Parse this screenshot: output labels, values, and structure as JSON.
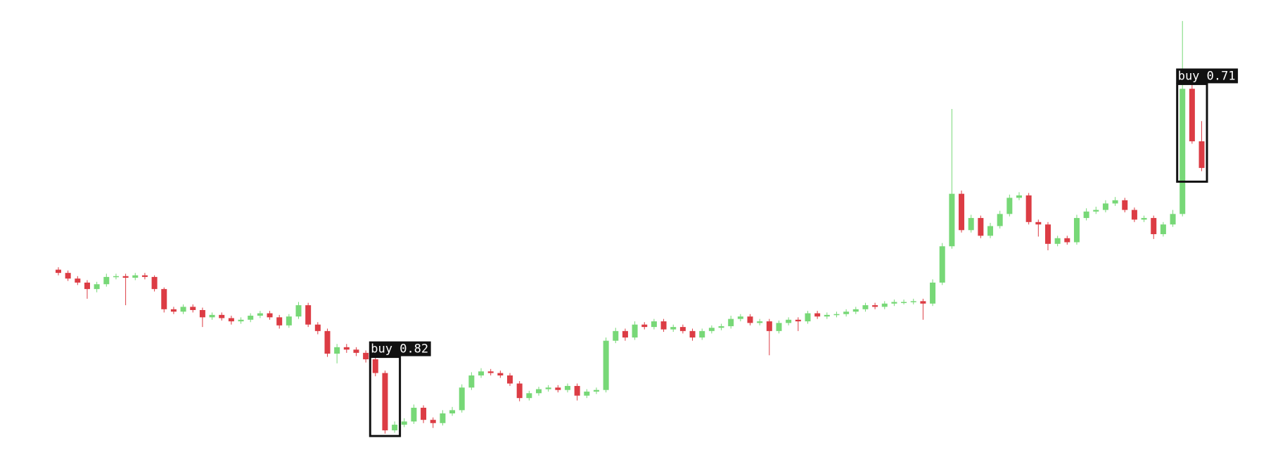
{
  "chart_data": {
    "type": "candlestick",
    "open": [
      232,
      228,
      221,
      216,
      208,
      214,
      223,
      224,
      222,
      225,
      223,
      208,
      183,
      180,
      186,
      182,
      173,
      176,
      172,
      168,
      170,
      175,
      178,
      173,
      163,
      174,
      188,
      164,
      156,
      128,
      136,
      133,
      129,
      121,
      104,
      33,
      40,
      44,
      61,
      46,
      42,
      54,
      58,
      86,
      101,
      106,
      104,
      101,
      91,
      73,
      79,
      84,
      86,
      83,
      88,
      76,
      81,
      83,
      144,
      156,
      148,
      164,
      161,
      168,
      158,
      161,
      156,
      148,
      156,
      160,
      162,
      171,
      174,
      166,
      168,
      156,
      166,
      170,
      168,
      178,
      174,
      176,
      177,
      180,
      183,
      188,
      186,
      190,
      192,
      192,
      193,
      190,
      216,
      261,
      326,
      281,
      296,
      274,
      286,
      301,
      321,
      324,
      291,
      288,
      264,
      271,
      266,
      296,
      304,
      306,
      314,
      318,
      306,
      294,
      296,
      276,
      288,
      301,
      456,
      391
    ],
    "high": [
      235,
      231,
      224,
      219,
      217,
      227,
      227,
      227,
      228,
      228,
      225,
      210,
      186,
      189,
      189,
      185,
      179,
      179,
      175,
      173,
      178,
      181,
      181,
      176,
      177,
      192,
      191,
      167,
      159,
      140,
      140,
      136,
      132,
      124,
      107,
      44,
      48,
      65,
      64,
      49,
      58,
      62,
      90,
      105,
      110,
      109,
      107,
      104,
      94,
      82,
      87,
      89,
      89,
      91,
      91,
      84,
      86,
      148,
      160,
      159,
      168,
      167,
      171,
      171,
      164,
      164,
      159,
      159,
      163,
      165,
      175,
      177,
      177,
      171,
      171,
      169,
      173,
      173,
      181,
      181,
      179,
      180,
      183,
      186,
      191,
      191,
      193,
      195,
      195,
      196,
      196,
      220,
      265,
      431,
      330,
      300,
      299,
      290,
      305,
      325,
      328,
      327,
      294,
      291,
      274,
      274,
      300,
      308,
      310,
      318,
      322,
      321,
      309,
      299,
      299,
      291,
      306,
      540,
      470,
      416
    ],
    "low": [
      225,
      218,
      213,
      196,
      204,
      211,
      220,
      188,
      219,
      220,
      205,
      179,
      177,
      177,
      179,
      161,
      170,
      169,
      164,
      165,
      167,
      172,
      170,
      159,
      160,
      171,
      161,
      152,
      124,
      116,
      129,
      125,
      117,
      100,
      29,
      30,
      37,
      41,
      42,
      36,
      39,
      51,
      55,
      83,
      98,
      101,
      98,
      88,
      69,
      70,
      76,
      81,
      80,
      80,
      70,
      73,
      78,
      80,
      141,
      144,
      145,
      158,
      158,
      155,
      155,
      153,
      144,
      145,
      153,
      157,
      159,
      168,
      163,
      163,
      126,
      153,
      163,
      156,
      165,
      171,
      171,
      173,
      174,
      177,
      180,
      183,
      183,
      187,
      189,
      189,
      170,
      187,
      213,
      258,
      278,
      278,
      271,
      271,
      283,
      298,
      318,
      288,
      273,
      256,
      261,
      263,
      263,
      293,
      301,
      303,
      311,
      303,
      291,
      291,
      270,
      273,
      285,
      298,
      388,
      354
    ],
    "close": [
      228,
      221,
      216,
      208,
      214,
      223,
      224,
      222,
      225,
      223,
      208,
      183,
      180,
      186,
      182,
      173,
      176,
      172,
      168,
      170,
      175,
      178,
      173,
      163,
      174,
      188,
      164,
      156,
      128,
      136,
      133,
      129,
      121,
      104,
      33,
      40,
      44,
      61,
      46,
      42,
      54,
      58,
      86,
      101,
      106,
      104,
      101,
      91,
      73,
      79,
      84,
      86,
      83,
      88,
      76,
      81,
      83,
      144,
      156,
      148,
      164,
      161,
      168,
      158,
      161,
      156,
      148,
      156,
      160,
      162,
      171,
      174,
      166,
      168,
      156,
      166,
      170,
      168,
      178,
      174,
      176,
      177,
      180,
      183,
      188,
      186,
      190,
      192,
      192,
      193,
      190,
      216,
      261,
      326,
      281,
      296,
      274,
      286,
      301,
      321,
      324,
      291,
      288,
      264,
      271,
      266,
      296,
      304,
      306,
      314,
      318,
      306,
      294,
      296,
      276,
      288,
      301,
      456,
      391,
      358
    ],
    "ylim": [
      0,
      566
    ],
    "up_color": "#77d877",
    "down_color": "#dc3c44",
    "detections": [
      {
        "label": "buy 0.82",
        "candles": [
          33,
          35
        ],
        "range": [
          26,
          124
        ]
      },
      {
        "label": "buy 0.71",
        "candles": [
          117,
          119
        ],
        "range": [
          341,
          462
        ]
      }
    ]
  }
}
